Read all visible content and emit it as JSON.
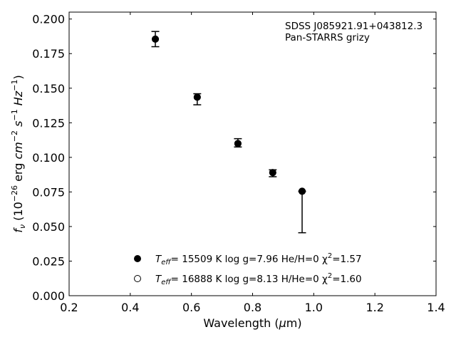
{
  "chart_data": {
    "type": "scatter",
    "annotation_lines": [
      "SDSS J085921.91+043812.3",
      "Pan-STARRS grizy"
    ],
    "xlabel": "Wavelength (μm)",
    "ylabel": "fν (10⁻²⁶ erg cm⁻² s⁻¹ Hz⁻¹)",
    "xlim": [
      0.2,
      1.4
    ],
    "ylim": [
      0.0,
      0.205
    ],
    "x_ticks": [
      "0.2",
      "0.4",
      "0.6",
      "0.8",
      "1.0",
      "1.2",
      "1.4"
    ],
    "y_ticks": [
      "0.000",
      "0.025",
      "0.050",
      "0.075",
      "0.100",
      "0.125",
      "0.150",
      "0.175",
      "0.200"
    ],
    "grid": false,
    "legend_position": "lower-center",
    "observed": {
      "x": [
        0.482,
        0.619,
        0.752,
        0.866,
        0.962
      ],
      "y": [
        0.186,
        0.1425,
        0.11,
        0.0885,
        0.0755
      ],
      "yerr_low": [
        0.006,
        0.0045,
        0.0025,
        0.0025,
        0.03
      ],
      "yerr_high": [
        0.005,
        0.0035,
        0.0035,
        0.0025,
        0.0
      ]
    },
    "series": [
      {
        "name": "Teff= 15509 K  log g=7.96  He/H=0  χ²=1.57",
        "marker": "filled-circle",
        "x": [
          0.482,
          0.619,
          0.752,
          0.866,
          0.962
        ],
        "y": [
          0.1855,
          0.1435,
          0.11,
          0.089,
          0.0755
        ]
      },
      {
        "name": "Teff= 16888 K  log g=8.13  H/He=0  χ²=1.60",
        "marker": "open-circle",
        "x": [
          0.482,
          0.619,
          0.752,
          0.866,
          0.962
        ],
        "y": [
          0.1855,
          0.1435,
          0.11,
          0.089,
          0.0755
        ]
      }
    ],
    "legend": [
      {
        "label_name": "T",
        "label_sub": "eff",
        "label_rest": "= 15509 K  log g=7.96  He/H=0  χ",
        "label_sup": "2",
        "label_end": "=1.57"
      },
      {
        "label_name": "T",
        "label_sub": "eff",
        "label_rest": "= 16888 K  log g=8.13  H/He=0  χ",
        "label_sup": "2",
        "label_end": "=1.60"
      }
    ],
    "colors": {
      "marker": "#000000",
      "axes": "#000000",
      "background": "#ffffff"
    }
  }
}
